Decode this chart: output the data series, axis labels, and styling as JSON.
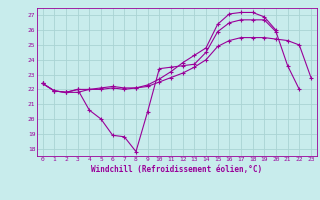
{
  "xlabel": "Windchill (Refroidissement éolien,°C)",
  "background_color": "#c8ecec",
  "grid_color": "#aad4d4",
  "line_color": "#990099",
  "x_ticks": [
    0,
    1,
    2,
    3,
    4,
    5,
    6,
    7,
    8,
    9,
    10,
    11,
    12,
    13,
    14,
    15,
    16,
    17,
    18,
    19,
    20,
    21,
    22,
    23
  ],
  "ylim": [
    17.5,
    27.5
  ],
  "xlim": [
    -0.5,
    23.5
  ],
  "yticks": [
    18,
    19,
    20,
    21,
    22,
    23,
    24,
    25,
    26,
    27
  ],
  "line1_x": [
    0,
    1,
    2,
    3,
    4,
    5,
    6,
    7,
    8,
    9,
    10,
    11,
    12,
    13,
    14,
    15,
    16,
    17,
    18,
    19,
    20,
    21,
    22,
    23
  ],
  "line1_y": [
    22.4,
    21.9,
    21.8,
    21.8,
    22.0,
    22.0,
    22.1,
    22.0,
    22.1,
    22.2,
    22.5,
    22.8,
    23.1,
    23.5,
    24.0,
    24.9,
    25.3,
    25.5,
    25.5,
    25.5,
    25.4,
    25.3,
    25.0,
    22.8
  ],
  "line2_x": [
    0,
    1,
    2,
    3,
    4,
    5,
    6,
    7,
    8,
    9,
    10,
    11,
    12,
    13,
    14,
    15,
    16,
    17,
    18,
    19,
    20,
    21,
    22,
    23
  ],
  "line2_y": [
    22.4,
    21.9,
    21.8,
    22.0,
    20.6,
    20.0,
    18.9,
    18.8,
    17.8,
    20.5,
    23.4,
    23.5,
    23.6,
    23.7,
    24.5,
    25.9,
    26.5,
    26.7,
    26.7,
    26.7,
    25.9,
    23.6,
    22.0,
    null
  ],
  "line3_x": [
    0,
    1,
    2,
    3,
    4,
    5,
    6,
    7,
    8,
    9,
    10,
    11,
    12,
    13,
    14,
    15,
    16,
    17,
    18,
    19,
    20,
    21,
    22,
    23
  ],
  "line3_y": [
    22.4,
    21.9,
    21.8,
    22.0,
    22.0,
    22.1,
    22.2,
    22.1,
    22.1,
    22.3,
    22.7,
    23.2,
    23.8,
    24.3,
    24.8,
    26.4,
    27.1,
    27.2,
    27.2,
    26.9,
    26.0,
    null,
    null,
    null
  ]
}
